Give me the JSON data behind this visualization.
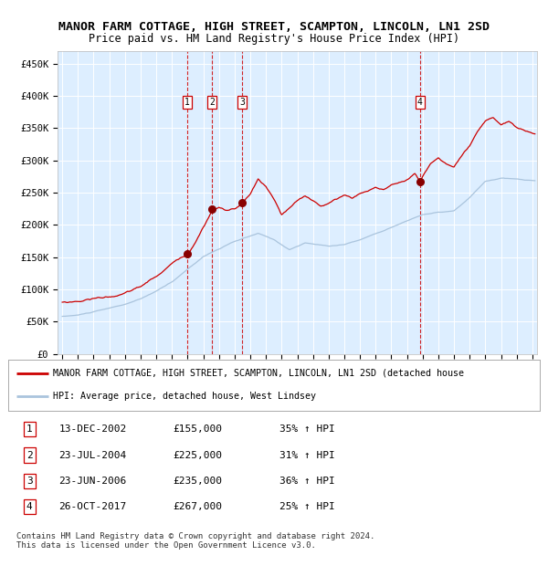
{
  "title": "MANOR FARM COTTAGE, HIGH STREET, SCAMPTON, LINCOLN, LN1 2SD",
  "subtitle": "Price paid vs. HM Land Registry's House Price Index (HPI)",
  "hpi_color": "#aac4dd",
  "price_color": "#cc0000",
  "background_color": "#ddeeff",
  "plot_bg": "#ffffff",
  "ylim": [
    0,
    470000
  ],
  "yticks": [
    0,
    50000,
    100000,
    150000,
    200000,
    250000,
    300000,
    350000,
    400000,
    450000
  ],
  "sales": [
    {
      "label": "1",
      "date_num": 2002.96,
      "price": 155000
    },
    {
      "label": "2",
      "date_num": 2004.56,
      "price": 225000
    },
    {
      "label": "3",
      "date_num": 2006.48,
      "price": 235000
    },
    {
      "label": "4",
      "date_num": 2017.82,
      "price": 267000
    }
  ],
  "table_rows": [
    {
      "num": "1",
      "date": "13-DEC-2002",
      "price": "£155,000",
      "hpi": "35% ↑ HPI"
    },
    {
      "num": "2",
      "date": "23-JUL-2004",
      "price": "£225,000",
      "hpi": "31% ↑ HPI"
    },
    {
      "num": "3",
      "date": "23-JUN-2006",
      "price": "£235,000",
      "hpi": "36% ↑ HPI"
    },
    {
      "num": "4",
      "date": "26-OCT-2017",
      "price": "£267,000",
      "hpi": "25% ↑ HPI"
    }
  ],
  "legend_line1": "MANOR FARM COTTAGE, HIGH STREET, SCAMPTON, LINCOLN, LN1 2SD (detached house",
  "legend_line2": "HPI: Average price, detached house, West Lindsey",
  "footer": "Contains HM Land Registry data © Crown copyright and database right 2024.\nThis data is licensed under the Open Government Licence v3.0.",
  "xstart_year": 1995,
  "xend_year": 2025
}
